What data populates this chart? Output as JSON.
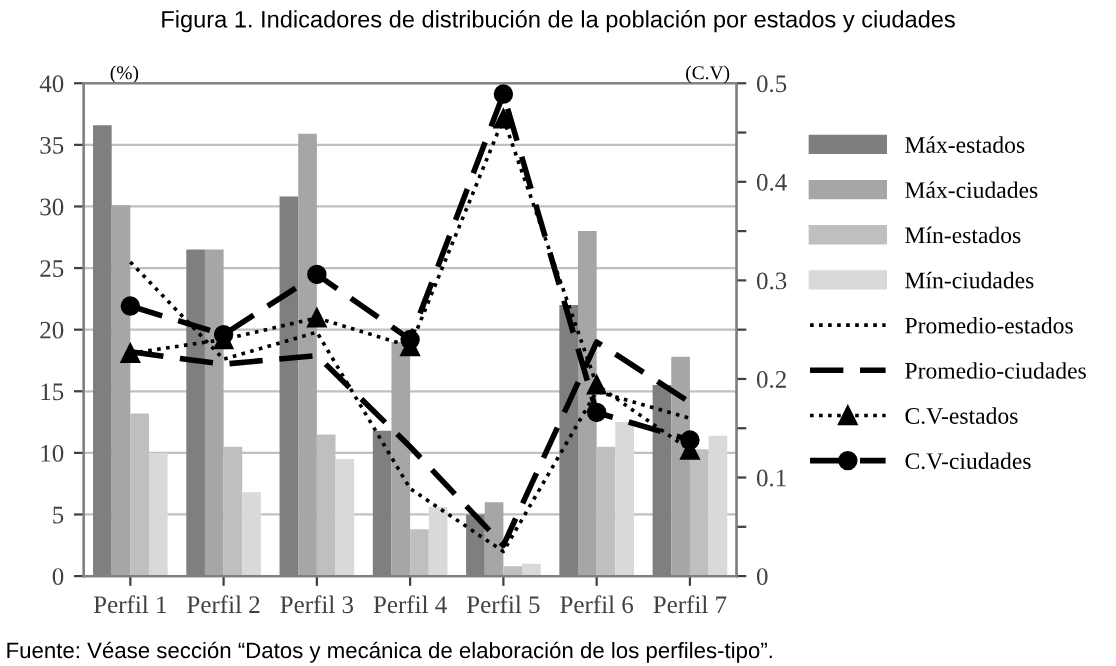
{
  "chart_data": {
    "type": "bar",
    "title": "Figura 1. Indicadores de distribución de la población por estados y ciudades",
    "ylabel": "(%)",
    "y2label": "(C.V)",
    "categories": [
      "Perfil 1",
      "Perfil 2",
      "Perfil 3",
      "Perfil 4",
      "Perfil 5",
      "Perfil 6",
      "Perfil 7"
    ],
    "series": [
      {
        "name": "Máx-estados",
        "color": "#7f7f7f",
        "values": [
          36.6,
          26.5,
          30.8,
          11.8,
          5.0,
          22.0,
          15.5
        ]
      },
      {
        "name": "Máx-ciudades",
        "color": "#a6a6a6",
        "values": [
          30.1,
          26.5,
          35.9,
          19.0,
          6.0,
          28.0,
          17.8
        ]
      },
      {
        "name": "Mín-estados",
        "color": "#bfbfbf",
        "values": [
          13.2,
          10.5,
          11.5,
          3.8,
          0.8,
          10.5,
          10.3
        ]
      },
      {
        "name": "Mín-ciudades",
        "color": "#d9d9d9",
        "values": [
          10.0,
          6.8,
          9.5,
          5.6,
          1.0,
          12.5,
          11.4
        ]
      },
      {
        "name": "Promedio-estados",
        "type": "line",
        "color": "#000000",
        "line_style": "dotted",
        "marker": "none",
        "values": [
          25.5,
          17.6,
          19.8,
          7.1,
          2.0,
          15.0,
          12.8
        ]
      },
      {
        "name": "Promedio-ciudades",
        "type": "line",
        "color": "#000000",
        "line_style": "dashed",
        "marker": "none",
        "values": [
          18.2,
          17.2,
          17.9,
          10.5,
          2.5,
          19.0,
          14.1
        ]
      },
      {
        "name": "C.V-estados",
        "type": "line",
        "axis": "y2",
        "color": "#000000",
        "line_style": "dotted",
        "marker": "triangle",
        "values": [
          0.226,
          0.24,
          0.262,
          0.233,
          0.464,
          0.194,
          0.128
        ]
      },
      {
        "name": "C.V-ciudades",
        "type": "line",
        "axis": "y2",
        "color": "#000000",
        "line_style": "dashed",
        "marker": "circle",
        "values": [
          0.274,
          0.245,
          0.306,
          0.24,
          0.489,
          0.166,
          0.138
        ]
      }
    ],
    "ylim": [
      0,
      40
    ],
    "yticks": [
      0,
      5,
      10,
      15,
      20,
      25,
      30,
      35,
      40
    ],
    "y2lim": [
      0,
      0.5
    ],
    "y2ticks": [
      0,
      {
        "value": 0.05,
        "label": null
      },
      0.1,
      {
        "value": 0.15,
        "label": null
      },
      0.2,
      {
        "value": 0.25,
        "label": null
      },
      0.3,
      {
        "value": 0.35,
        "label": null
      },
      0.4,
      {
        "value": 0.45,
        "label": null
      },
      0.5
    ],
    "grid": "y",
    "legend": "right",
    "annotations": [
      "Fuente: Véase sección “Datos y mecánica de elaboración de los perfiles-tipo”."
    ]
  }
}
